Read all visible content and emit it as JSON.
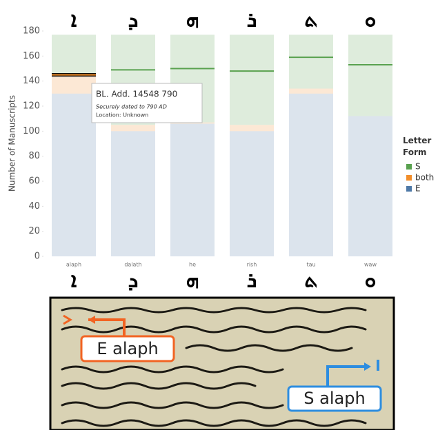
{
  "chart_data": {
    "type": "bar",
    "stacked": true,
    "y_label": "Number of Manuscripts",
    "categories": [
      "alaph",
      "dalath",
      "he",
      "rish",
      "tau",
      "waw"
    ],
    "top_glyphs": [
      "ܐ",
      "ܕ",
      "ܗ",
      "ܪ",
      "ܬ",
      "ܘ"
    ],
    "bottom_glyphs": [
      "ܐ",
      "ܕ",
      "ܗ",
      "ܪ",
      "ܬ",
      "ܘ"
    ],
    "series": [
      {
        "name": "S",
        "color": "#59a14f",
        "values": [
          33,
          72,
          70,
          72,
          43,
          65
        ]
      },
      {
        "name": "both",
        "color": "#f28e2b",
        "values": [
          14,
          5,
          1,
          5,
          4,
          0
        ]
      },
      {
        "name": "E",
        "color": "#4e79a7",
        "values": [
          130,
          100,
          106,
          100,
          130,
          112
        ]
      }
    ],
    "marker_values": [
      145,
      149,
      150,
      148,
      159,
      153
    ],
    "marker_color": "#59a14f",
    "highlight_index": 0,
    "ylim": [
      0,
      180
    ],
    "yticks": [
      0,
      20,
      40,
      60,
      80,
      100,
      120,
      140,
      160,
      180
    ],
    "legend_title": "Letter Form",
    "tooltip": {
      "title": "BL. Add. 14548 790",
      "subtitle": "Securely dated to 790 AD",
      "location": "Location: Unknown"
    }
  },
  "image": {
    "annotations": [
      "E alaph",
      "S alaph"
    ]
  }
}
